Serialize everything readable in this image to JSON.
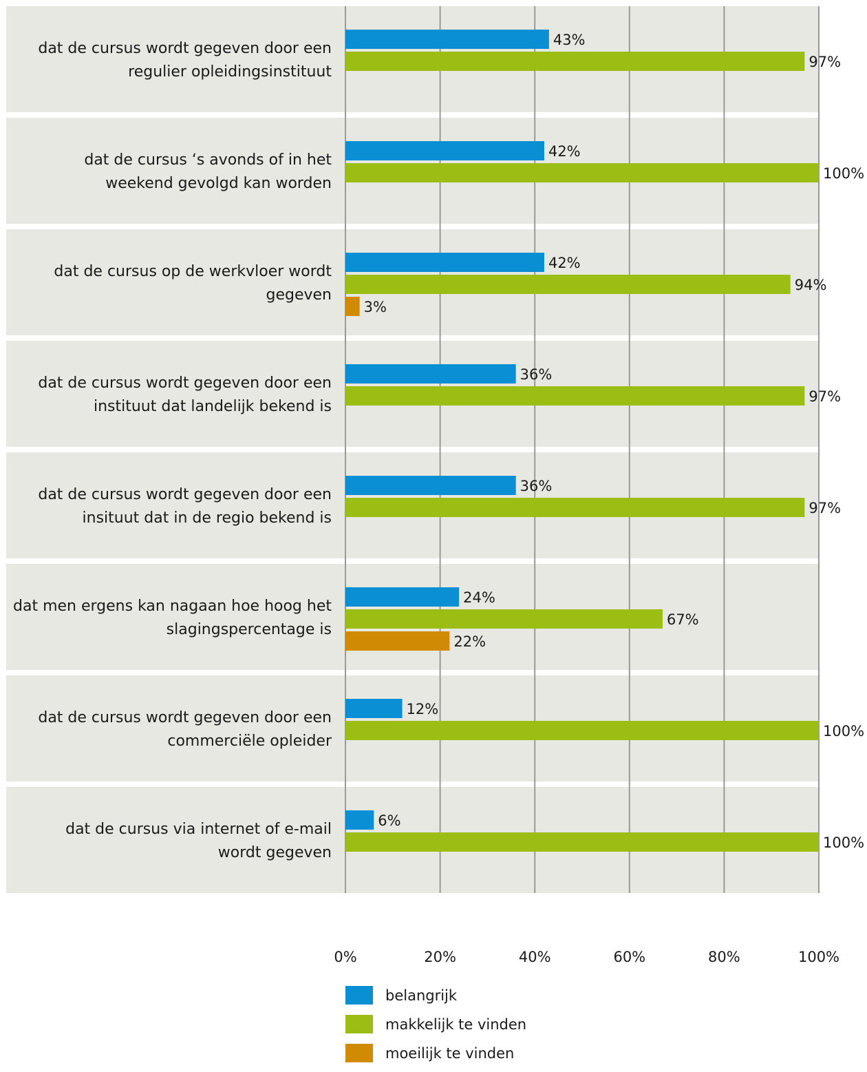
{
  "chart_data": {
    "type": "bar",
    "orientation": "horizontal",
    "categories": [
      [
        "dat de cursus wordt gegeven door een",
        "regulier opleidingsinstituut"
      ],
      [
        "dat de cursus  ‘s avonds of in het",
        "weekend gevolgd kan worden"
      ],
      [
        "dat de cursus op de werkvloer wordt",
        "gegeven"
      ],
      [
        "dat de cursus wordt gegeven door een",
        "instituut dat landelijk bekend is"
      ],
      [
        "dat de cursus wordt gegeven door een",
        "insituut dat in de regio bekend is"
      ],
      [
        "dat men ergens kan nagaan hoe hoog het",
        "slagingspercentage is"
      ],
      [
        "dat de cursus wordt gegeven door een",
        "commerciële opleider"
      ],
      [
        "dat de cursus via internet of e-mail",
        "wordt gegeven"
      ]
    ],
    "series": [
      {
        "name": "belangrijk",
        "color": "#0a8ed4",
        "values": [
          43,
          42,
          42,
          36,
          36,
          24,
          12,
          6
        ]
      },
      {
        "name": "makkelijk te vinden",
        "color": "#9cbd13",
        "values": [
          97,
          100,
          94,
          97,
          97,
          67,
          100,
          100
        ]
      },
      {
        "name": "moeilijk te vinden",
        "color": "#d18a04",
        "values": [
          null,
          null,
          3,
          null,
          null,
          22,
          null,
          null
        ]
      }
    ],
    "value_labels": [
      [
        "43%",
        "97%",
        null
      ],
      [
        "42%",
        "100%",
        null
      ],
      [
        "42%",
        "94%",
        "3%"
      ],
      [
        "36%",
        "97%",
        null
      ],
      [
        "36%",
        "97%",
        null
      ],
      [
        "24%",
        "67%",
        "22%"
      ],
      [
        "12%",
        "100%",
        null
      ],
      [
        "6%",
        "100%",
        null
      ]
    ],
    "xlim": [
      0,
      100
    ],
    "xticks": [
      0,
      20,
      40,
      60,
      80,
      100
    ],
    "xtick_labels": [
      "0%",
      "20%",
      "40%",
      "60%",
      "80%",
      "100%"
    ],
    "grid": true,
    "legend_position": "bottom",
    "colors": {
      "panel": "#e8e8e3",
      "grid": "#9a9a94"
    }
  }
}
